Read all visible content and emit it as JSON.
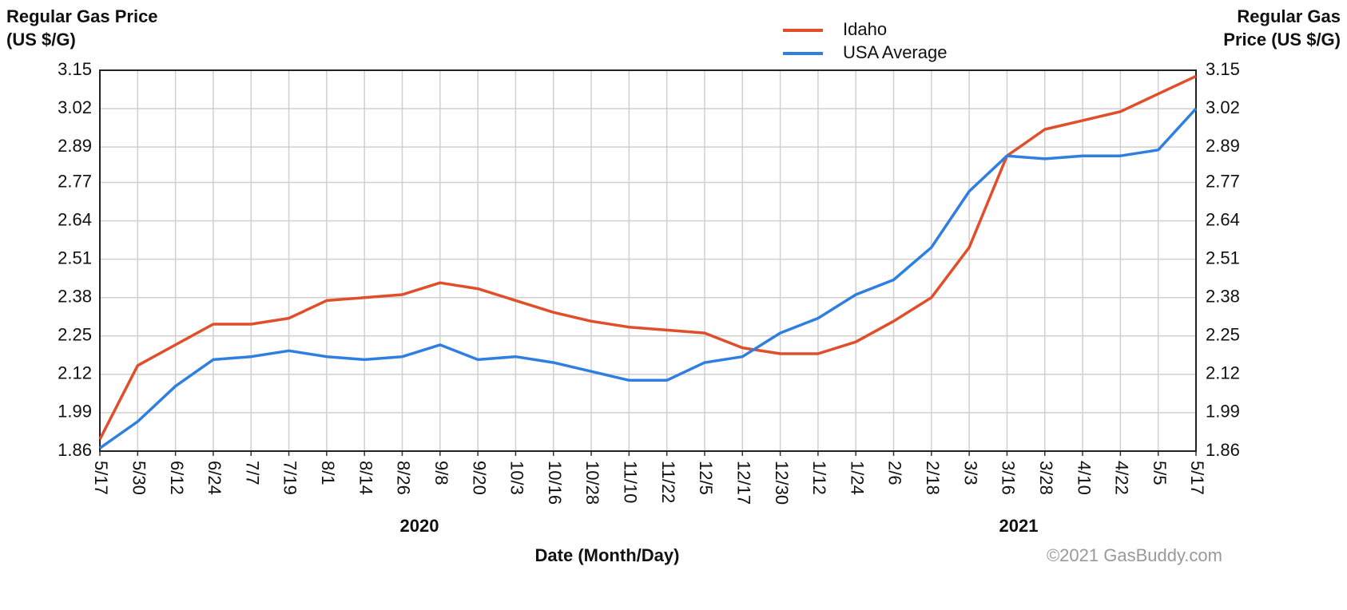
{
  "chart_data": {
    "type": "line",
    "y_label": "Regular Gas Price (US $/G)",
    "y2_label": "Regular Gas Price (US $/G)",
    "x_label": "Date (Month/Day)",
    "annotations": [
      "2020",
      "2021"
    ],
    "credit": "©2021 GasBuddy.com",
    "categories": [
      "5/17",
      "5/30",
      "6/12",
      "6/24",
      "7/7",
      "7/19",
      "8/1",
      "8/14",
      "8/26",
      "9/8",
      "9/20",
      "10/3",
      "10/16",
      "10/28",
      "11/10",
      "11/22",
      "12/5",
      "12/17",
      "12/30",
      "1/12",
      "1/24",
      "2/6",
      "2/18",
      "3/3",
      "3/16",
      "3/28",
      "4/10",
      "4/22",
      "5/5",
      "5/17"
    ],
    "series": [
      {
        "name": "Idaho",
        "color": "#e04e2a",
        "values": [
          1.9,
          2.15,
          2.22,
          2.29,
          2.29,
          2.31,
          2.37,
          2.38,
          2.39,
          2.43,
          2.41,
          2.37,
          2.33,
          2.3,
          2.28,
          2.27,
          2.26,
          2.21,
          2.19,
          2.19,
          2.23,
          2.3,
          2.38,
          2.55,
          2.86,
          2.95,
          2.98,
          3.01,
          3.07,
          3.13
        ]
      },
      {
        "name": "USA Average",
        "color": "#2f7fe0",
        "values": [
          1.87,
          1.96,
          2.08,
          2.17,
          2.18,
          2.2,
          2.18,
          2.17,
          2.18,
          2.22,
          2.17,
          2.18,
          2.16,
          2.13,
          2.1,
          2.1,
          2.16,
          2.18,
          2.26,
          2.31,
          2.39,
          2.44,
          2.55,
          2.74,
          2.86,
          2.85,
          2.86,
          2.86,
          2.88,
          3.02
        ]
      }
    ],
    "ylim": [
      1.86,
      3.15
    ],
    "yticks": [
      1.86,
      1.99,
      2.12,
      2.25,
      2.38,
      2.51,
      2.64,
      2.77,
      2.89,
      3.02,
      3.15
    ],
    "y2lim": [
      1.86,
      3.15
    ],
    "y2ticks": [
      1.86,
      1.99,
      2.12,
      2.25,
      2.38,
      2.51,
      2.64,
      2.77,
      2.89,
      3.02,
      3.15
    ],
    "grid": true,
    "legend": "top"
  }
}
